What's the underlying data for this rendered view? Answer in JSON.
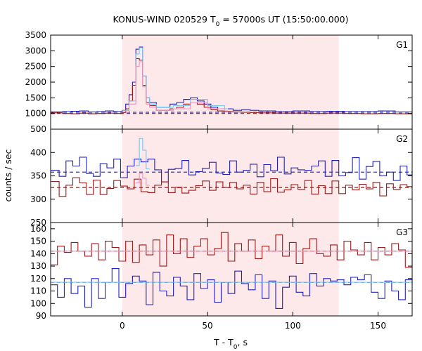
{
  "chart_data": {
    "type": "line",
    "title": "KONUS-WIND 020529 T",
    "title_sub": "0",
    "title_rest": " = 57000s UT (15:50:00.000)",
    "xlabel": "T - T",
    "xlabel_sub": "0",
    "xlabel_rest": ", s",
    "ylabel": "counts / sec",
    "xlim": [
      -42,
      170
    ],
    "xticks": [
      0,
      50,
      100,
      150
    ],
    "interval_shading": {
      "from": 0,
      "to": 127,
      "color": "#fde8ea"
    },
    "grid": false,
    "panels": [
      {
        "label": "G1",
        "ylim": [
          500,
          3500
        ],
        "yticks": [
          500,
          1000,
          1500,
          2000,
          2500,
          3000,
          3500
        ],
        "background": {
          "blue": 1040,
          "red": 1000
        },
        "series": [
          {
            "name": "blue",
            "color": "#2020c0",
            "x": [
              -42,
              -35,
              -30,
              -25,
              -20,
              -15,
              -10,
              -5,
              0,
              2,
              4,
              6,
              8,
              10,
              12,
              14,
              16,
              20,
              24,
              28,
              32,
              36,
              40,
              44,
              48,
              52,
              56,
              60,
              65,
              70,
              75,
              80,
              90,
              100,
              110,
              120,
              130,
              140,
              150,
              160,
              170
            ],
            "y": [
              1050,
              1060,
              1070,
              1080,
              1050,
              1060,
              1080,
              1060,
              1100,
              1300,
              1600,
              2000,
              3050,
              3120,
              2200,
              1500,
              1350,
              1200,
              1200,
              1300,
              1350,
              1450,
              1500,
              1400,
              1300,
              1200,
              1150,
              1150,
              1100,
              1120,
              1100,
              1080,
              1060,
              1080,
              1060,
              1070,
              1060,
              1060,
              1080,
              1050,
              1060
            ]
          },
          {
            "name": "red",
            "color": "#a01818",
            "x": [
              -42,
              -35,
              -30,
              -25,
              -20,
              -15,
              -10,
              -5,
              0,
              2,
              4,
              6,
              8,
              10,
              12,
              14,
              16,
              20,
              24,
              28,
              32,
              36,
              40,
              44,
              48,
              52,
              56,
              60,
              65,
              70,
              75,
              80,
              90,
              100,
              110,
              120,
              130,
              140,
              150,
              160,
              170
            ],
            "y": [
              1020,
              1000,
              990,
              1010,
              990,
              1000,
              1010,
              1000,
              1030,
              1150,
              1400,
              1900,
              2750,
              2700,
              1900,
              1350,
              1250,
              1100,
              1100,
              1150,
              1200,
              1300,
              1350,
              1300,
              1200,
              1120,
              1080,
              1060,
              1050,
              1040,
              1030,
              1020,
              1010,
              1010,
              1000,
              1010,
              1000,
              990,
              1000,
              990,
              1000
            ]
          },
          {
            "name": "light-blue",
            "color": "#70c8f0",
            "x": [
              0,
              4,
              8,
              10,
              12,
              14,
              16,
              20,
              30,
              40,
              50,
              60
            ],
            "y": [
              1100,
              1400,
              2900,
              3100,
              2200,
              1500,
              1300,
              1200,
              1250,
              1450,
              1250,
              1150
            ]
          },
          {
            "name": "pink",
            "color": "#f090c0",
            "x": [
              0,
              4,
              8,
              10,
              12,
              14,
              16,
              20,
              30,
              40,
              50,
              60
            ],
            "y": [
              1050,
              1300,
              2500,
              2650,
              1850,
              1300,
              1200,
              1100,
              1150,
              1350,
              1150,
              1080
            ]
          }
        ]
      },
      {
        "label": "G2",
        "ylim": [
          250,
          450
        ],
        "yticks": [
          250,
          300,
          350,
          400,
          450
        ],
        "background": {
          "blue": 358,
          "red": 325
        },
        "series": [
          {
            "name": "blue",
            "color": "#2020c0",
            "x": [
              -42,
              -37,
              -33,
              -29,
              -25,
              -21,
              -17,
              -13,
              -9,
              -5,
              -1,
              3,
              7,
              11,
              15,
              19,
              23,
              27,
              31,
              35,
              39,
              43,
              47,
              51,
              55,
              59,
              63,
              67,
              71,
              75,
              79,
              83,
              87,
              91,
              95,
              99,
              103,
              107,
              111,
              115,
              119,
              123,
              127,
              131,
              135,
              139,
              143,
              147,
              151,
              155,
              159,
              163,
              167,
              170
            ],
            "y": [
              362,
              349,
              382,
              371,
              390,
              355,
              349,
              376,
              367,
              386,
              346,
              371,
              386,
              380,
              386,
              363,
              337,
              364,
              366,
              383,
              352,
              359,
              366,
              379,
              356,
              353,
              382,
              358,
              362,
              375,
              348,
              374,
              361,
              390,
              354,
              367,
              363,
              362,
              371,
              382,
              349,
              383,
              350,
              357,
              389,
              343,
              370,
              381,
              350,
              358,
              340,
              371,
              352,
              360
            ]
          },
          {
            "name": "red",
            "color": "#a01818",
            "x": [
              -42,
              -37,
              -33,
              -29,
              -25,
              -21,
              -17,
              -13,
              -9,
              -5,
              -1,
              3,
              7,
              11,
              15,
              19,
              23,
              27,
              31,
              35,
              39,
              43,
              47,
              51,
              55,
              59,
              63,
              67,
              71,
              75,
              79,
              83,
              87,
              91,
              95,
              99,
              103,
              107,
              111,
              115,
              119,
              123,
              127,
              131,
              135,
              139,
              143,
              147,
              151,
              155,
              159,
              163,
              167,
              170
            ],
            "y": [
              338,
              306,
              330,
              346,
              335,
              310,
              341,
              310,
              323,
              340,
              328,
              322,
              343,
              316,
              314,
              330,
              337,
              314,
              326,
              313,
              319,
              329,
              339,
              319,
              337,
              325,
              336,
              322,
              330,
              311,
              336,
              316,
              344,
              315,
              320,
              331,
              321,
              340,
              311,
              329,
              312,
              339,
              312,
              330,
              320,
              332,
              322,
              336,
              307,
              333,
              321,
              331,
              327,
              325
            ]
          },
          {
            "name": "light-blue",
            "color": "#70c8f0",
            "x": [
              8,
              10,
              12,
              14
            ],
            "y": [
              372,
              430,
              405,
              365
            ]
          },
          {
            "name": "pink",
            "color": "#f090c0",
            "x": [
              8,
              10,
              12,
              14
            ],
            "y": [
              335,
              355,
              345,
              330
            ]
          }
        ]
      },
      {
        "label": "G3",
        "ylim": [
          90,
          165
        ],
        "yticks": [
          90,
          100,
          110,
          120,
          130,
          140,
          150,
          160
        ],
        "background": {
          "blue": 117,
          "red": 142
        },
        "series": [
          {
            "name": "red",
            "color": "#a01818",
            "x": [
              -42,
              -38,
              -34,
              -30,
              -26,
              -22,
              -18,
              -14,
              -10,
              -6,
              -2,
              2,
              6,
              10,
              14,
              18,
              22,
              26,
              30,
              34,
              38,
              42,
              46,
              50,
              54,
              58,
              62,
              66,
              70,
              74,
              78,
              82,
              86,
              90,
              94,
              98,
              102,
              106,
              110,
              114,
              118,
              122,
              126,
              130,
              134,
              138,
              142,
              146,
              150,
              154,
              158,
              162,
              166,
              170
            ],
            "y": [
              131,
              146,
              141,
              149,
              142,
              138,
              148,
              135,
              150,
              145,
              134,
              150,
              133,
              147,
              139,
              151,
              130,
              155,
              140,
              152,
              137,
              146,
              152,
              139,
              144,
              157,
              134,
              148,
              142,
              151,
              136,
              146,
              142,
              155,
              138,
              149,
              132,
              144,
              152,
              140,
              138,
              147,
              135,
              150,
              143,
              139,
              149,
              135,
              145,
              139,
              148,
              143,
              129,
              143
            ]
          },
          {
            "name": "blue",
            "color": "#2020c0",
            "x": [
              -42,
              -38,
              -34,
              -30,
              -26,
              -22,
              -18,
              -14,
              -10,
              -6,
              -2,
              2,
              6,
              10,
              14,
              18,
              22,
              26,
              30,
              34,
              38,
              42,
              46,
              50,
              54,
              58,
              62,
              66,
              70,
              74,
              78,
              82,
              86,
              90,
              94,
              98,
              102,
              106,
              110,
              114,
              118,
              122,
              126,
              130,
              134,
              138,
              142,
              146,
              150,
              154,
              158,
              162,
              166,
              170
            ],
            "y": [
              115,
              105,
              120,
              108,
              114,
              97,
              120,
              104,
              117,
              128,
              105,
              116,
              122,
              118,
              99,
              125,
              110,
              106,
              121,
              114,
              103,
              124,
              112,
              119,
              101,
              117,
              108,
              126,
              116,
              111,
              123,
              104,
              118,
              96,
              113,
              122,
              109,
              106,
              124,
              114,
              120,
              118,
              119,
              115,
              121,
              119,
              123,
              109,
              104,
              118,
              110,
              103,
              119,
              115
            ]
          },
          {
            "name": "pink",
            "color": "#f090c0",
            "x": [
              -42,
              170
            ],
            "y": [
              142,
              142
            ]
          },
          {
            "name": "light-blue",
            "color": "#70c8f0",
            "x": [
              -42,
              170
            ],
            "y": [
              117,
              117
            ]
          }
        ]
      }
    ]
  }
}
